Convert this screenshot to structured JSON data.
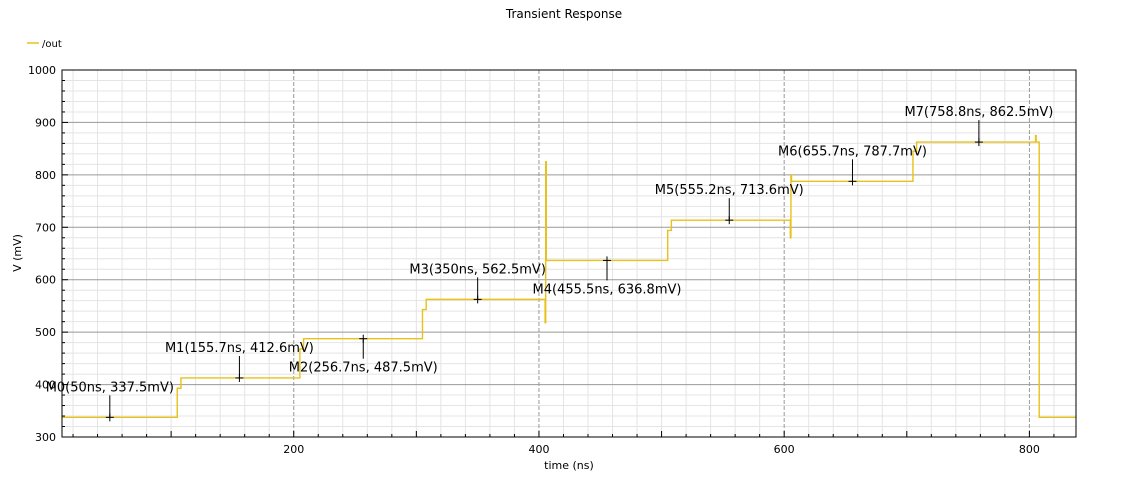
{
  "chart_data": {
    "type": "line",
    "title": "Transient Response",
    "xlabel": "time (ns)",
    "ylabel": "V (mV)",
    "xlim": [
      11,
      838
    ],
    "ylim": [
      300,
      1000
    ],
    "x_ticks": [
      200,
      400,
      600,
      800
    ],
    "x_tick_labels": [
      "200",
      "400",
      "600",
      "800"
    ],
    "y_ticks": [
      300,
      400,
      500,
      600,
      700,
      800,
      900,
      1000
    ],
    "y_tick_labels": [
      "300",
      "400",
      "500",
      "600",
      "700",
      "800",
      "900",
      "1000"
    ],
    "grid": true,
    "legend": "top-left",
    "series": [
      {
        "name": "/out",
        "color": "#e8c21a",
        "x": [
          11,
          105,
          105,
          108,
          108,
          205,
          205,
          208,
          208,
          305,
          305,
          308,
          308,
          405,
          405,
          405.5,
          405.5,
          406,
          406,
          505,
          505,
          508,
          508,
          605,
          605,
          605.5,
          605.5,
          606,
          606,
          705,
          705,
          708,
          708,
          805,
          805,
          805.5,
          805.5,
          808,
          808,
          838
        ],
        "y": [
          337.5,
          337.5,
          393,
          393,
          412.6,
          412.6,
          468,
          468,
          487.5,
          487.5,
          543,
          543,
          562.5,
          562.5,
          518,
          518,
          825,
          825,
          636.8,
          636.8,
          694,
          694,
          713.6,
          713.6,
          680,
          680,
          800,
          800,
          787.7,
          787.7,
          845,
          845,
          862.5,
          862.5,
          875,
          875,
          862.5,
          862.5,
          337.5,
          337.5
        ]
      }
    ],
    "markers": [
      {
        "label": "M0(50ns, 337.5mV)",
        "x": 50,
        "y": 337.5,
        "label_pos": "above"
      },
      {
        "label": "M1(155.7ns, 412.6mV)",
        "x": 155.7,
        "y": 412.6,
        "label_pos": "above"
      },
      {
        "label": "M2(256.7ns, 487.5mV)",
        "x": 256.7,
        "y": 487.5,
        "label_pos": "below"
      },
      {
        "label": "M3(350ns, 562.5mV)",
        "x": 350,
        "y": 562.5,
        "label_pos": "above"
      },
      {
        "label": "M4(455.5ns, 636.8mV)",
        "x": 455.5,
        "y": 636.8,
        "label_pos": "below"
      },
      {
        "label": "M5(555.2ns, 713.6mV)",
        "x": 555.2,
        "y": 713.6,
        "label_pos": "above"
      },
      {
        "label": "M6(655.7ns, 787.7mV)",
        "x": 655.7,
        "y": 787.7,
        "label_pos": "above"
      },
      {
        "label": "M7(758.8ns, 862.5mV)",
        "x": 758.8,
        "y": 862.5,
        "label_pos": "above"
      }
    ]
  }
}
